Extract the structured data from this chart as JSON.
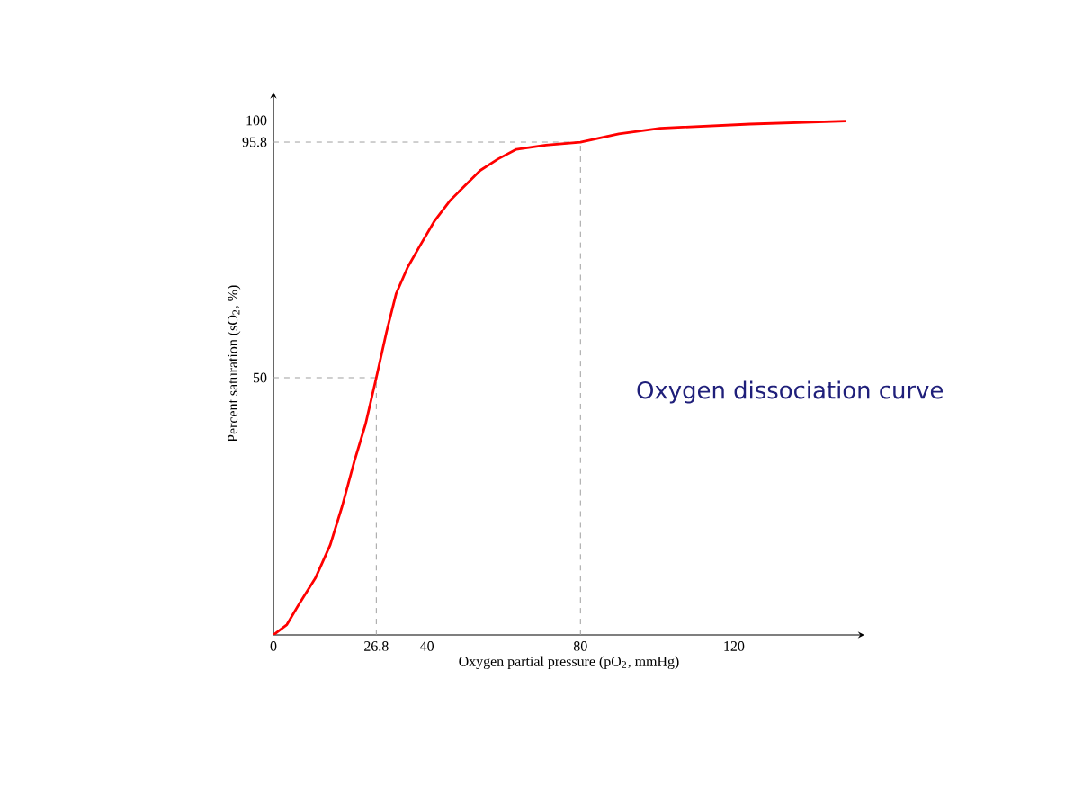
{
  "chart_data": {
    "type": "line",
    "xlabel": "Oxygen partial pressure (pO$_{2}$, mmHg)",
    "ylabel": "Percent saturation (sO$_{2}$, %)",
    "annotations": [
      "Oxygen dissociation curve"
    ],
    "x": [
      0,
      3.5,
      7,
      10.9,
      14.8,
      17.9,
      21.1,
      24,
      26.8,
      29.5,
      32,
      35,
      38.3,
      42,
      46.1,
      53.9,
      58.5,
      63.3,
      71,
      80,
      90,
      100.8,
      124.2,
      149.2
    ],
    "series": [
      {
        "color": "#ff0000",
        "values": [
          0,
          2,
          6.4,
          11,
          17.5,
          25,
          33.8,
          41,
          50,
          59,
          66.4,
          71.5,
          75.8,
          80.5,
          84.5,
          90.3,
          92.5,
          94.4,
          95.2,
          95.8,
          97.4,
          98.5,
          99.3,
          99.9
        ]
      }
    ],
    "xlim": [
      0,
      154
    ],
    "ylim": [
      0,
      105.5
    ],
    "xticks": [
      0,
      26.8,
      40,
      80,
      120
    ],
    "yticks": [
      50,
      95.8,
      100
    ],
    "ref_lines": [
      {
        "axis": "y",
        "value": 50,
        "color": "#a0a0a0",
        "line_style": "dashed"
      },
      {
        "axis": "y",
        "value": 95.8,
        "color": "#a0a0a0",
        "line_style": "dashed"
      },
      {
        "axis": "x",
        "value": 26.8,
        "color": "#a0a0a0",
        "line_style": "dashed"
      },
      {
        "axis": "x",
        "value": 80,
        "color": "#a0a0a0",
        "line_style": "dashed"
      }
    ],
    "marker": "none",
    "line_style": "solid",
    "grid": false
  }
}
